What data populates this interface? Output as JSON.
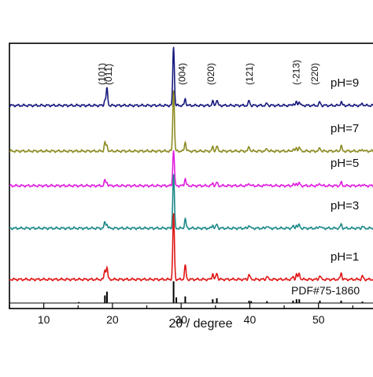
{
  "chart_data": {
    "type": "line",
    "title": "",
    "xlabel": "2θ / degree",
    "ylabel": "",
    "xlim": [
      5,
      60
    ],
    "xticks": [
      10,
      20,
      30,
      40,
      50
    ],
    "yaxis_ticks": false,
    "legend": "none",
    "series": [
      {
        "name": "pH=9",
        "color": "#1a1a80",
        "offset": 5,
        "peaks": [
          [
            18.9,
            0.08
          ],
          [
            19.2,
            0.26
          ],
          [
            28.9,
            0.92
          ],
          [
            30.6,
            0.1
          ],
          [
            34.6,
            0.06
          ],
          [
            35.2,
            0.09
          ],
          [
            39.9,
            0.07
          ],
          [
            42.5,
            0.03
          ],
          [
            46.3,
            0.03
          ],
          [
            46.8,
            0.05
          ],
          [
            47.2,
            0.06
          ],
          [
            50.2,
            0.05
          ],
          [
            53.3,
            0.06
          ],
          [
            56.4,
            0.03
          ]
        ]
      },
      {
        "name": "pH=7",
        "color": "#8c8c24",
        "offset": 4,
        "peaks": [
          [
            18.9,
            0.13
          ],
          [
            19.2,
            0.08
          ],
          [
            28.9,
            0.96
          ],
          [
            30.6,
            0.14
          ],
          [
            34.6,
            0.06
          ],
          [
            35.2,
            0.08
          ],
          [
            39.9,
            0.07
          ],
          [
            42.5,
            0.04
          ],
          [
            46.3,
            0.03
          ],
          [
            46.8,
            0.05
          ],
          [
            47.2,
            0.06
          ],
          [
            50.2,
            0.05
          ],
          [
            53.3,
            0.08
          ],
          [
            56.4,
            0.03
          ]
        ]
      },
      {
        "name": "pH=5",
        "color": "#e020e0",
        "offset": 3,
        "peaks": [
          [
            18.9,
            0.08
          ],
          [
            19.2,
            0.05
          ],
          [
            28.9,
            0.56
          ],
          [
            30.6,
            0.11
          ],
          [
            34.6,
            0.04
          ],
          [
            35.2,
            0.05
          ],
          [
            39.9,
            0.04
          ],
          [
            42.5,
            0.03
          ],
          [
            46.3,
            0.02
          ],
          [
            46.8,
            0.04
          ],
          [
            47.2,
            0.04
          ],
          [
            50.2,
            0.04
          ],
          [
            53.3,
            0.05
          ],
          [
            56.4,
            0.02
          ]
        ]
      },
      {
        "name": "pH=3",
        "color": "#208a8a",
        "offset": 2,
        "peaks": [
          [
            18.9,
            0.09
          ],
          [
            19.2,
            0.06
          ],
          [
            28.9,
            0.84
          ],
          [
            30.6,
            0.14
          ],
          [
            34.6,
            0.05
          ],
          [
            35.2,
            0.06
          ],
          [
            39.9,
            0.05
          ],
          [
            42.5,
            0.04
          ],
          [
            46.3,
            0.03
          ],
          [
            46.8,
            0.05
          ],
          [
            47.2,
            0.05
          ],
          [
            50.2,
            0.04
          ],
          [
            53.3,
            0.06
          ],
          [
            56.4,
            0.03
          ]
        ]
      },
      {
        "name": "pH=1",
        "color": "#e01818",
        "offset": 1,
        "peaks": [
          [
            18.9,
            0.14
          ],
          [
            19.2,
            0.18
          ],
          [
            28.9,
            1.02
          ],
          [
            30.6,
            0.21
          ],
          [
            34.6,
            0.09
          ],
          [
            35.2,
            0.1
          ],
          [
            39.9,
            0.08
          ],
          [
            42.5,
            0.05
          ],
          [
            46.3,
            0.04
          ],
          [
            46.8,
            0.08
          ],
          [
            47.2,
            0.09
          ],
          [
            50.2,
            0.06
          ],
          [
            53.3,
            0.1
          ],
          [
            56.4,
            0.05
          ]
        ]
      }
    ],
    "reference": {
      "name": "PDF#75-1860",
      "color": "#000000",
      "sticks": [
        [
          15.1,
          0.02
        ],
        [
          18.9,
          0.16
        ],
        [
          19.2,
          0.24
        ],
        [
          28.9,
          0.46
        ],
        [
          29.3,
          0.12
        ],
        [
          30.6,
          0.14
        ],
        [
          34.6,
          0.08
        ],
        [
          35.2,
          0.1
        ],
        [
          39.9,
          0.05
        ],
        [
          40.2,
          0.04
        ],
        [
          42.5,
          0.04
        ],
        [
          46.3,
          0.05
        ],
        [
          46.8,
          0.08
        ],
        [
          47.2,
          0.08
        ],
        [
          50.2,
          0.05
        ],
        [
          53.3,
          0.05
        ],
        [
          56.4,
          0.03
        ]
      ]
    },
    "annotations": [
      {
        "text": "(101)",
        "x": 18.9
      },
      {
        "text": "(011)",
        "x": 19.9
      },
      {
        "text": "(004)",
        "x": 30.6
      },
      {
        "text": "(020)",
        "x": 34.8
      },
      {
        "text": "(121)",
        "x": 40.4
      },
      {
        "text": "(-213)",
        "x": 47.2
      },
      {
        "text": "(220)",
        "x": 49.9
      }
    ]
  }
}
